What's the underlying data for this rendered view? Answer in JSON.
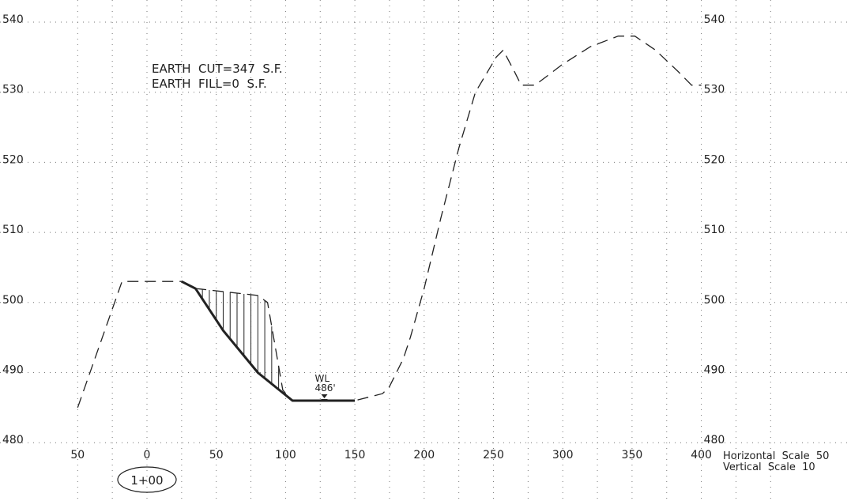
{
  "chart_data": {
    "type": "line",
    "title": "",
    "xlabel": "",
    "ylabel": "",
    "xlim": [
      -50,
      400
    ],
    "ylim": [
      480,
      540
    ],
    "x_tick_labels": [
      "50",
      "0",
      "50",
      "100",
      "150",
      "200",
      "250",
      "300",
      "350",
      "400"
    ],
    "x_tick_values": [
      -50,
      0,
      50,
      100,
      150,
      200,
      250,
      300,
      350,
      400
    ],
    "y_ticks": [
      480,
      490,
      500,
      510,
      520,
      530,
      540
    ],
    "grid": true,
    "grid_style": "dotted",
    "series": [
      {
        "style": "dashed",
        "points": [
          [
            -50,
            485
          ],
          [
            -18,
            503
          ],
          [
            25,
            503
          ],
          [
            35,
            502
          ],
          [
            80,
            501
          ],
          [
            87,
            500
          ],
          [
            98,
            487.5
          ],
          [
            105,
            486
          ],
          [
            150,
            486
          ],
          [
            170,
            487
          ],
          [
            175,
            488
          ],
          [
            185,
            492
          ],
          [
            190,
            495
          ],
          [
            200,
            502
          ],
          [
            212,
            512
          ],
          [
            225,
            522
          ],
          [
            237,
            530
          ],
          [
            246,
            533
          ],
          [
            252,
            535
          ],
          [
            257,
            536
          ],
          [
            265,
            533
          ],
          [
            270,
            531
          ],
          [
            280,
            531
          ],
          [
            300,
            534
          ],
          [
            320,
            536.5
          ],
          [
            340,
            538
          ],
          [
            352,
            538
          ],
          [
            367,
            536
          ],
          [
            383,
            533
          ],
          [
            393,
            531
          ],
          [
            400,
            531
          ]
        ]
      },
      {
        "style": "solid-bold",
        "points": [
          [
            25,
            503
          ],
          [
            35,
            502
          ],
          [
            55,
            496
          ],
          [
            80,
            490
          ],
          [
            105,
            486
          ],
          [
            150,
            486
          ]
        ]
      }
    ],
    "cut_hatch_region": {
      "top": [
        [
          25,
          503
        ],
        [
          35,
          502
        ],
        [
          80,
          501
        ],
        [
          87,
          500
        ],
        [
          98,
          487.5
        ],
        [
          105,
          486
        ]
      ],
      "bottom": [
        [
          25,
          503
        ],
        [
          35,
          502
        ],
        [
          55,
          496
        ],
        [
          80,
          490
        ],
        [
          105,
          486
        ]
      ]
    },
    "annotations": {
      "earth_cut": "EARTH  CUT=347  S.F.",
      "earth_fill": "EARTH  FILL=0  S.F.",
      "wl_label": "WL",
      "wl_value": "486'",
      "wl_x": 128,
      "wl_y": 486,
      "station": "1+00",
      "horizontal_scale": "Horizontal  Scale  50",
      "vertical_scale": "Vertical  Scale  10"
    }
  },
  "colors": {
    "line": "#222222",
    "grid": "#777777",
    "background": "#ffffff"
  }
}
